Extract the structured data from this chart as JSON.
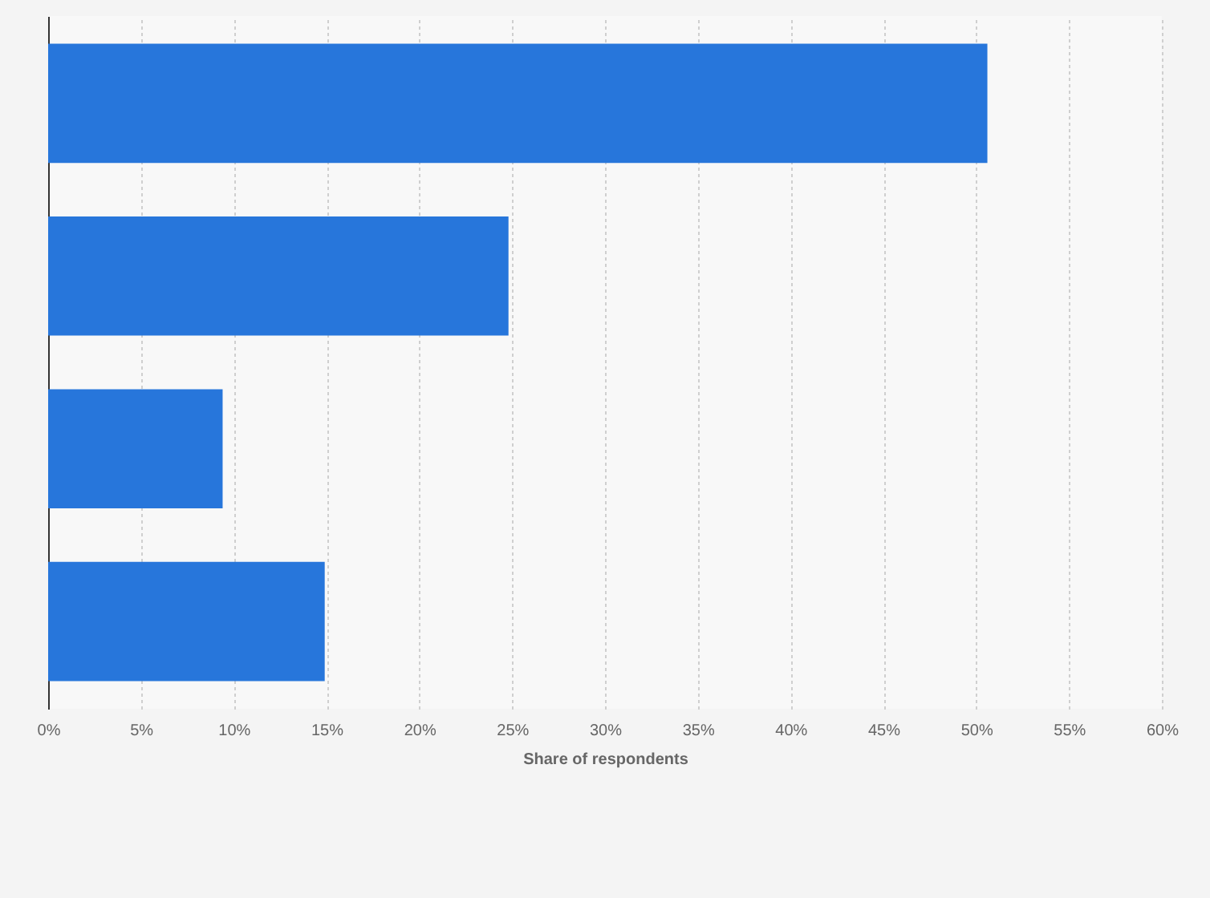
{
  "chart_data": {
    "type": "bar",
    "orientation": "horizontal",
    "xlabel": "Share of respondents",
    "categories": [
      null,
      null,
      null,
      null
    ],
    "values": [
      50.6,
      24.8,
      9.4,
      14.9
    ],
    "color": "#2776db",
    "xlim": [
      0,
      60
    ],
    "xticks": [
      {
        "value": 0,
        "label": "0%"
      },
      {
        "value": 5,
        "label": "5%"
      },
      {
        "value": 10,
        "label": "10%"
      },
      {
        "value": 15,
        "label": "15%"
      },
      {
        "value": 20,
        "label": "20%"
      },
      {
        "value": 25,
        "label": "25%"
      },
      {
        "value": 30,
        "label": "30%"
      },
      {
        "value": 35,
        "label": "35%"
      },
      {
        "value": 40,
        "label": "40%"
      },
      {
        "value": 45,
        "label": "45%"
      },
      {
        "value": 50,
        "label": "50%"
      },
      {
        "value": 55,
        "label": "55%"
      },
      {
        "value": 60,
        "label": "60%"
      }
    ],
    "grid": "x"
  }
}
